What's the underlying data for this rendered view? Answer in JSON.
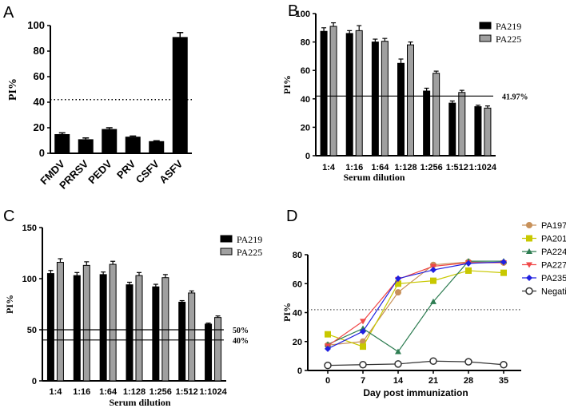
{
  "chart_data": [
    {
      "panel_label": "A",
      "type": "bar",
      "ylabel": "PI%",
      "xlabel": "",
      "ylim": [
        0,
        100
      ],
      "yticks": [
        0,
        20,
        40,
        60,
        80,
        100
      ],
      "categories": [
        "FMDV",
        "PRRSV",
        "PEDV",
        "PRV",
        "CSFV",
        "ASFV"
      ],
      "values": [
        15,
        11,
        19,
        13,
        9.5,
        91
      ],
      "errors": [
        1,
        1,
        1,
        0.5,
        0.3,
        3.5
      ],
      "threshold": {
        "value": 42,
        "style": "dotted"
      },
      "color": "#000000"
    },
    {
      "panel_label": "B",
      "type": "bar",
      "ylabel": "PI%",
      "xlabel": "Serum dilution",
      "ylim": [
        0,
        100
      ],
      "yticks": [
        0,
        20,
        40,
        60,
        80,
        100
      ],
      "categories": [
        "1:4",
        "1:16",
        "1:64",
        "1:128",
        "1:256",
        "1:512",
        "1:1024"
      ],
      "series": [
        {
          "name": "PA219",
          "color": "#000000",
          "values": [
            87.5,
            86,
            80,
            65,
            45.5,
            37,
            34.5
          ],
          "errors": [
            2.5,
            2,
            2,
            3,
            2,
            1.5,
            1
          ]
        },
        {
          "name": "PA225",
          "color": "#a0a0a0",
          "values": [
            91,
            88,
            80.5,
            78,
            58,
            44.5,
            33.5
          ],
          "errors": [
            2.5,
            3.5,
            2,
            2,
            1.5,
            1.5,
            1.5
          ]
        }
      ],
      "thresholds": [
        {
          "value": 41.97,
          "label": "41.97%"
        }
      ],
      "legend": "top-right"
    },
    {
      "panel_label": "C",
      "type": "bar",
      "ylabel": "PI%",
      "xlabel": "Serum dilution",
      "ylim": [
        0,
        150
      ],
      "yticks": [
        0,
        50,
        100,
        150
      ],
      "categories": [
        "1:4",
        "1:16",
        "1:64",
        "1:128",
        "1:256",
        "1:512",
        "1:1024"
      ],
      "series": [
        {
          "name": "PA219",
          "color": "#000000",
          "values": [
            105,
            103,
            104,
            94,
            92,
            77,
            55.5
          ],
          "errors": [
            3,
            3,
            2.5,
            2.5,
            2.5,
            1.5,
            1
          ]
        },
        {
          "name": "PA225",
          "color": "#a0a0a0",
          "values": [
            116,
            113,
            114,
            103,
            101,
            86,
            62
          ],
          "errors": [
            3.5,
            3.5,
            3,
            3,
            3,
            2,
            1.5
          ]
        }
      ],
      "thresholds": [
        {
          "value": 50,
          "label": "50%"
        },
        {
          "value": 40,
          "label": "40%"
        }
      ],
      "legend": "top-right"
    },
    {
      "panel_label": "D",
      "type": "line",
      "ylabel": "PI%",
      "xlabel": "Day post immunization",
      "ylim": [
        0,
        80
      ],
      "yticks": [
        0,
        20,
        40,
        60,
        80
      ],
      "x": [
        0,
        7,
        14,
        21,
        28,
        35
      ],
      "series": [
        {
          "name": "PA197",
          "color": "#c8915a",
          "marker": "circle",
          "values": [
            17.5,
            20,
            54,
            73,
            75,
            74.5
          ]
        },
        {
          "name": "PA201",
          "color": "#c8c800",
          "marker": "square",
          "values": [
            25,
            16.5,
            60,
            62,
            69,
            67.5
          ]
        },
        {
          "name": "PA224",
          "color": "#2e7d52",
          "marker": "triangle-up",
          "values": [
            18,
            29,
            13,
            47.5,
            75.5,
            75.5
          ]
        },
        {
          "name": "PA227",
          "color": "#f04848",
          "marker": "triangle-down",
          "values": [
            17,
            34,
            63,
            72,
            74.5,
            74.5
          ]
        },
        {
          "name": "PA235",
          "color": "#2020e0",
          "marker": "diamond",
          "values": [
            15,
            27,
            63.5,
            69.5,
            74,
            75
          ]
        },
        {
          "name": "Negative",
          "color": "#333333",
          "marker": "open-circle",
          "values": [
            3.5,
            4,
            4.5,
            6.5,
            6,
            4
          ]
        }
      ],
      "threshold": {
        "value": 42,
        "style": "dotted"
      },
      "legend": "right"
    }
  ]
}
